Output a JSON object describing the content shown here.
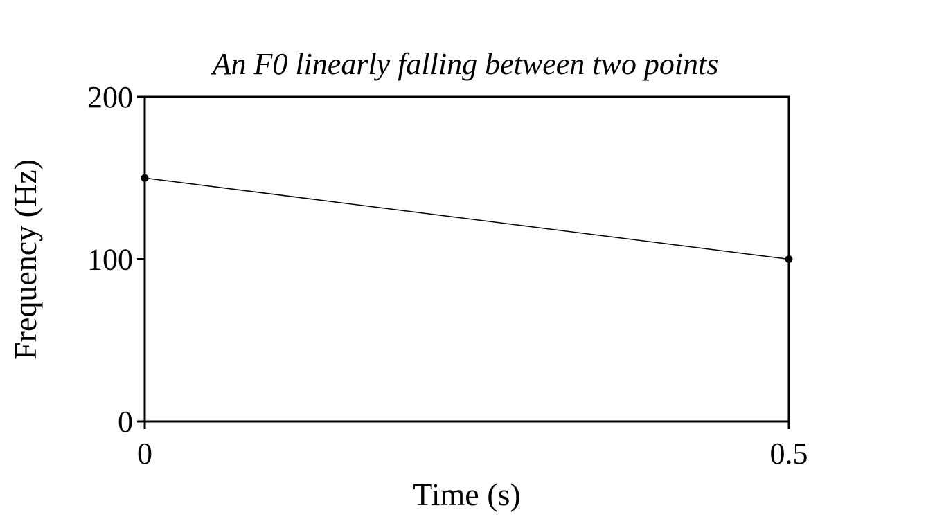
{
  "chart_data": {
    "type": "line",
    "title": "An F0 linearly falling between two points",
    "xlabel": "Time (s)",
    "ylabel": "Frequency (Hz)",
    "xlim": [
      0,
      0.5
    ],
    "ylim": [
      0,
      200
    ],
    "xticks": [
      {
        "value": 0,
        "label": "0"
      },
      {
        "value": 0.5,
        "label": "0.5"
      }
    ],
    "yticks": [
      {
        "value": 0,
        "label": "0"
      },
      {
        "value": 100,
        "label": "100"
      },
      {
        "value": 200,
        "label": "200"
      }
    ],
    "series": [
      {
        "x": [
          0,
          0.5
        ],
        "y": [
          150,
          100
        ],
        "markers": true,
        "color": "#000000"
      }
    ],
    "grid": false,
    "legend": false
  }
}
